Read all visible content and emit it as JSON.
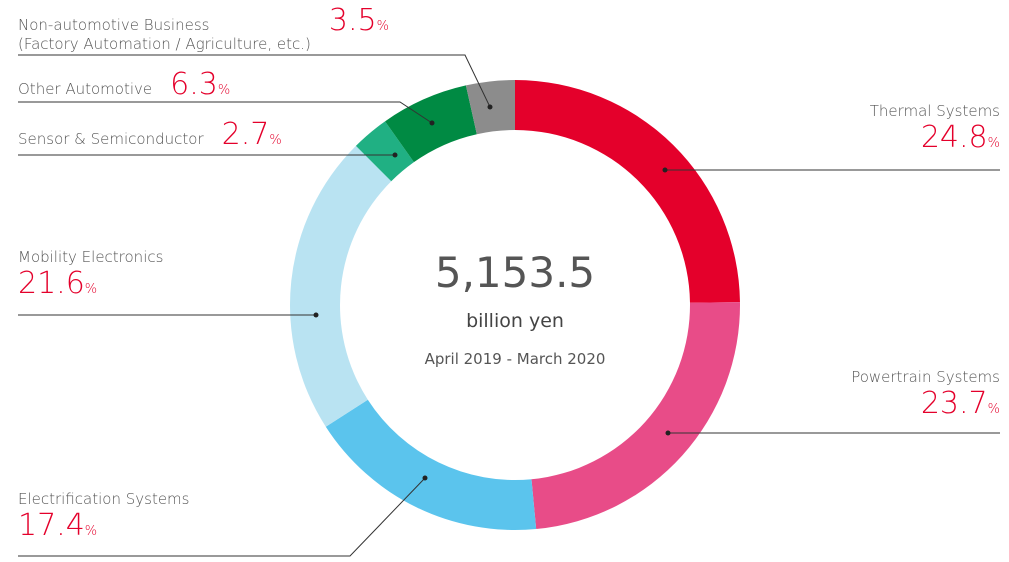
{
  "chart_data": {
    "type": "donut",
    "categories": [
      "Thermal Systems",
      "Powertrain Systems",
      "Electrification Systems",
      "Mobility Electronics",
      "Sensor & Semiconductor",
      "Other Automotive",
      "Non-automotive Business\n(Factory Automation / Agriculture, etc.)"
    ],
    "values": [
      24.8,
      23.7,
      17.4,
      21.6,
      2.7,
      6.3,
      3.5
    ],
    "value_unit": "%",
    "colors": [
      "#e4002b",
      "#e84c88",
      "#5bc4ed",
      "#b9e3f2",
      "#20b083",
      "#008a43",
      "#8c8c8c"
    ],
    "total": {
      "value": 5153.5,
      "label": "5,153.5"
    },
    "total_unit": "billion yen",
    "period": "April 2019 - March 2020"
  }
}
